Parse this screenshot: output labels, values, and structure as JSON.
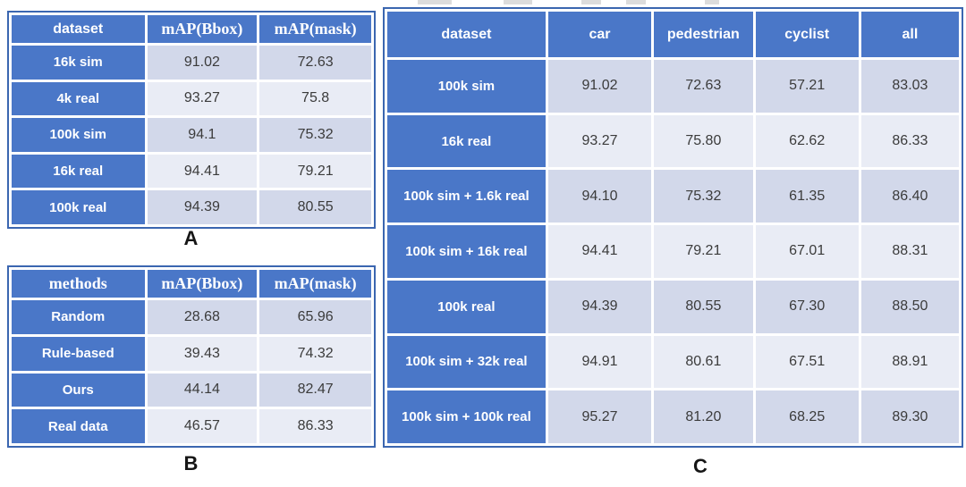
{
  "colors": {
    "accent_blue": "#4a77c8",
    "outer_border_blue": "#3b66b0",
    "band_dark": "#d2d8ea",
    "band_light": "#e9ecf5",
    "value_text": "#3b3b3b",
    "header_text": "#ffffff",
    "caption_text": "#161616",
    "page_background": "#ffffff"
  },
  "tables": {
    "a": {
      "label": "A",
      "headers": [
        "dataset",
        "mAP(Bbox)",
        "mAP(mask)"
      ],
      "rows": [
        {
          "label": "16k sim",
          "values": [
            "91.02",
            "72.63"
          ]
        },
        {
          "label": "4k real",
          "values": [
            "93.27",
            "75.8"
          ]
        },
        {
          "label": "100k sim",
          "values": [
            "94.1",
            "75.32"
          ]
        },
        {
          "label": "16k real",
          "values": [
            "94.41",
            "79.21"
          ]
        },
        {
          "label": "100k real",
          "values": [
            "94.39",
            "80.55"
          ]
        }
      ]
    },
    "b": {
      "label": "B",
      "headers": [
        "methods",
        "mAP(Bbox)",
        "mAP(mask)"
      ],
      "rows": [
        {
          "label": "Random",
          "values": [
            "28.68",
            "65.96"
          ]
        },
        {
          "label": "Rule-based",
          "values": [
            "39.43",
            "74.32"
          ]
        },
        {
          "label": "Ours",
          "values": [
            "44.14",
            "82.47"
          ]
        },
        {
          "label": "Real data",
          "values": [
            "46.57",
            "86.33"
          ]
        }
      ]
    },
    "c": {
      "label": "C",
      "headers": [
        "dataset",
        "car",
        "pedestrian",
        "cyclist",
        "all"
      ],
      "rows": [
        {
          "label": "100k sim",
          "values": [
            "91.02",
            "72.63",
            "57.21",
            "83.03"
          ]
        },
        {
          "label": "16k real",
          "values": [
            "93.27",
            "75.80",
            "62.62",
            "86.33"
          ]
        },
        {
          "label": "100k sim + 1.6k real",
          "values": [
            "94.10",
            "75.32",
            "61.35",
            "86.40"
          ]
        },
        {
          "label": "100k sim + 16k real",
          "values": [
            "94.41",
            "79.21",
            "67.01",
            "88.31"
          ]
        },
        {
          "label": "100k real",
          "values": [
            "94.39",
            "80.55",
            "67.30",
            "88.50"
          ]
        },
        {
          "label": "100k sim + 32k real",
          "values": [
            "94.91",
            "80.61",
            "67.51",
            "88.91"
          ]
        },
        {
          "label": "100k sim + 100k real",
          "values": [
            "95.27",
            "81.20",
            "68.25",
            "89.30"
          ]
        }
      ]
    }
  }
}
